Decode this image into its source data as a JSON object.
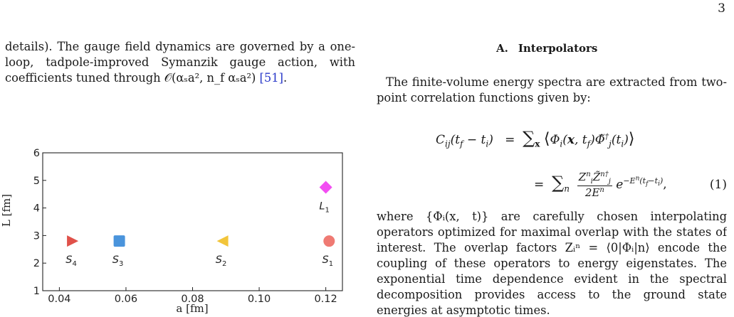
{
  "page": {
    "number": "3"
  },
  "left_column": {
    "paragraph": "details). The gauge field dynamics are governed by a one-loop, tadpole-improved Symanzik gauge action, with coefficients tuned through 𝒪(αₛa², n_f αₛa²) ",
    "citation": "[51]",
    "paragraph_end": "."
  },
  "section": {
    "number": "A.",
    "title": "Interpolators"
  },
  "right_column": {
    "intro": "The finite-volume energy spectra are extracted from two-point correlation functions given by:",
    "equation": {
      "line1_lhs": "C",
      "line1_rhs": "= Σ_x ⟨Φ_i(x, t_f) Φ̃_j†(t_i)⟩",
      "line2_rhs": "= Σ_n Z_i^n Z̃_j^n† / 2E^n · e^{−E^n (t_f − t_i)},",
      "number": "(1)"
    },
    "paragraph": "where {Φᵢ(x, t)} are carefully chosen interpolating operators optimized for maximal overlap with the states of interest. The overlap factors Zᵢⁿ = ⟨0|Φᵢ|n⟩ encode the coupling of these operators to energy eigenstates. The exponential time dependence evident in the spectral decomposition provides access to the ground state energies at asymptotic times."
  },
  "chart_data": {
    "type": "scatter",
    "title": "",
    "xlabel": "a [fm]",
    "ylabel": "L [fm]",
    "xlim": [
      0.035,
      0.125
    ],
    "ylim": [
      1,
      6
    ],
    "xticks": [
      "0.04",
      "0.06",
      "0.08",
      "0.10",
      "0.12"
    ],
    "xtick_values": [
      0.04,
      0.06,
      0.08,
      0.1,
      0.12
    ],
    "yticks": [
      "1",
      "2",
      "3",
      "4",
      "5",
      "6"
    ],
    "ytick_values": [
      1,
      2,
      3,
      4,
      5,
      6
    ],
    "grid": false,
    "points": [
      {
        "label": "S",
        "sub": "4",
        "x": 0.044,
        "y": 2.8,
        "marker": "triangle-right",
        "color": "#e0514a"
      },
      {
        "label": "S",
        "sub": "3",
        "x": 0.058,
        "y": 2.8,
        "marker": "square",
        "color": "#4a94dc"
      },
      {
        "label": "S",
        "sub": "2",
        "x": 0.089,
        "y": 2.8,
        "marker": "triangle-left",
        "color": "#f2c53a"
      },
      {
        "label": "S",
        "sub": "1",
        "x": 0.121,
        "y": 2.8,
        "marker": "circle",
        "color": "#ef7a73"
      },
      {
        "label": "L",
        "sub": "1",
        "x": 0.12,
        "y": 4.75,
        "marker": "diamond",
        "color": "#f24ef2"
      }
    ]
  }
}
